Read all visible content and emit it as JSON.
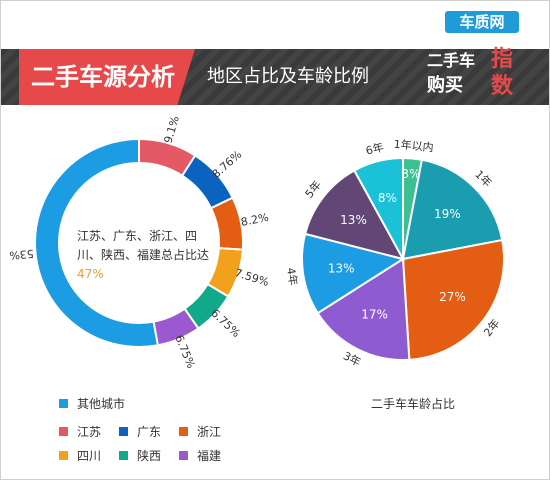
{
  "header": {
    "main_title": "二手车源分析",
    "sub_title": "地区占比及车龄比例"
  },
  "logo": {
    "brand": "车质网",
    "url": "12365auto.com",
    "line1": "二手车",
    "line2": "购买",
    "accent1": "指",
    "accent2": "数"
  },
  "donut": {
    "center_text": "江苏、广东、浙江、四川、陕西、福建总占比达",
    "center_pct": "47%"
  },
  "legend": [
    {
      "label": "其他城市",
      "color": "#1c9ce3"
    },
    {
      "label": "江苏",
      "color": "#e35a66"
    },
    {
      "label": "广东",
      "color": "#0b63c0"
    },
    {
      "label": "浙江",
      "color": "#e35d12"
    },
    {
      "label": "四川",
      "color": "#f2a11d"
    },
    {
      "label": "陕西",
      "color": "#10a98a"
    },
    {
      "label": "福建",
      "color": "#9b58cf"
    }
  ],
  "pie_caption": "二手车车龄占比",
  "chart_data": [
    {
      "type": "pie",
      "variant": "donut",
      "labels": [
        "其他城市",
        "江苏",
        "广东",
        "浙江",
        "四川",
        "陕西",
        "福建"
      ],
      "values": [
        53,
        9.1,
        8.76,
        8.2,
        7.59,
        6.75,
        6.75
      ],
      "value_labels": [
        "53%",
        "9.1%",
        "8.76%",
        "8.2%",
        "7.59%",
        "6.75%",
        "6.75%"
      ],
      "colors": [
        "#1c9ce3",
        "#e35a66",
        "#0b63c0",
        "#e35d12",
        "#f2a11d",
        "#10a98a",
        "#9b58cf"
      ],
      "legend": "bottom-left"
    },
    {
      "type": "pie",
      "title": "二手车车龄占比",
      "labels": [
        "1年以内",
        "1年",
        "2年",
        "3年",
        "4年",
        "5年",
        "6年"
      ],
      "values": [
        3,
        19,
        27,
        17,
        13,
        13,
        8
      ],
      "value_labels": [
        "3%",
        "19%",
        "27%",
        "17%",
        "13%",
        "13%",
        "8%"
      ],
      "colors": [
        "#3cbf91",
        "#1a9dae",
        "#e35d12",
        "#8e5bd1",
        "#1c9ce3",
        "#624676",
        "#1bc1d6"
      ]
    }
  ]
}
